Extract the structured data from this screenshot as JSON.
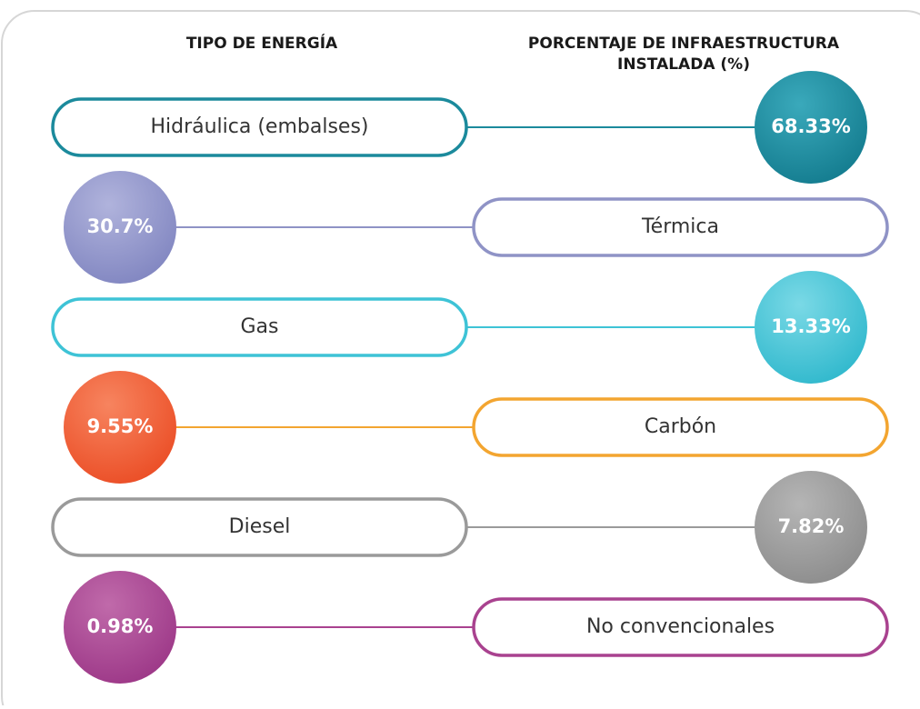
{
  "header": {
    "type_label": "TIPO DE ENERGÍA",
    "percent_label_line1": "PORCENTAJE DE INFRAESTRUCTURA",
    "percent_label_line2": "INSTALADA (%)"
  },
  "rows": [
    {
      "label": "Hidráulica (embalses)",
      "value": "68.33%"
    },
    {
      "label": "Térmica",
      "value": "30.7%"
    },
    {
      "label": "Gas",
      "value": "13.33%"
    },
    {
      "label": "Carbón",
      "value": "9.55%"
    },
    {
      "label": "Diesel",
      "value": "7.82%"
    },
    {
      "label": "No convencionales",
      "value": "0.98%"
    }
  ]
}
